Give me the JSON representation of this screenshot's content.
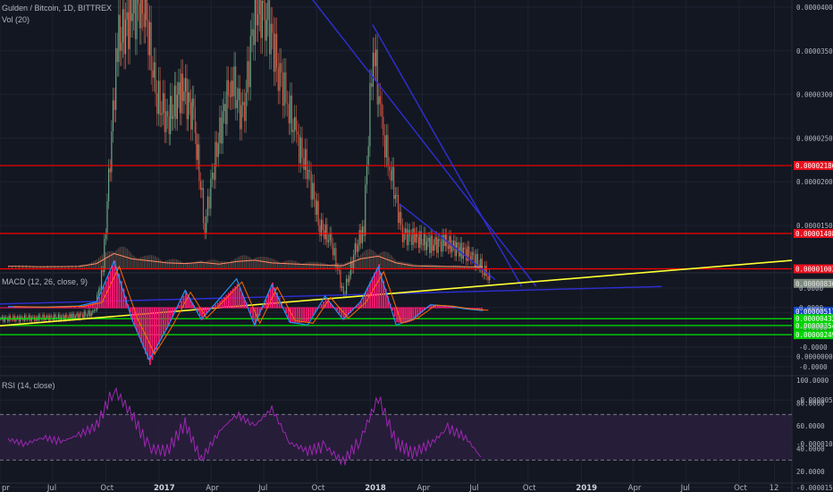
{
  "header": {
    "symbol_label": "Gulden / Bitcoin, 1D, BITTREX",
    "volume_label": "Vol (20)",
    "macd_label": "MACD (12, 26, close, 9)",
    "rsi_label": "RSI (14, close)"
  },
  "colors": {
    "background": "#131722",
    "grid": "#1f2230",
    "candle_up": "#6ba583",
    "candle_down": "#d75442",
    "resistance": "#ff0000",
    "support": "#00e600",
    "trendline": "#2f2fd6",
    "uptrend": "#ffff33",
    "macd_line": "#2196f3",
    "signal_line": "#ff6d00",
    "histogram": "#ff1a75",
    "rsi_line": "#9c27b0",
    "rsi_band": "#2a1f3d"
  },
  "price_axis": {
    "ticks": [
      "0.00004000",
      "0.00003500",
      "0.00003000",
      "0.00002500",
      "0.00002000",
      "0.00001500",
      "0.00001000",
      "0.00000500",
      "0.00000000",
      "-0.00000500",
      "-0.00001000",
      "-0.00001500"
    ],
    "tags": [
      {
        "text": "0.00002186",
        "color": "#e8101e"
      },
      {
        "text": "0.00001408",
        "color": "#e8101e"
      },
      {
        "text": "0.00001003",
        "color": "#e8101e"
      },
      {
        "text": "0.00000836",
        "color": "#7d8a7f"
      },
      {
        "text": "0.00000517",
        "color": "#1848c7"
      },
      {
        "text": "0.00000432",
        "color": "#00d400"
      },
      {
        "text": "0.00000354",
        "color": "#00d400"
      },
      {
        "text": "0.00000249",
        "color": "#00d400"
      }
    ]
  },
  "macd_axis": {
    "ticks": [
      "0.0000",
      "0.0000",
      "-0.0000",
      "-0.0000",
      "-0.0000"
    ]
  },
  "rsi_axis": {
    "ticks": [
      "100.0000",
      "80.0000",
      "60.0000",
      "40.0000",
      "20.0000"
    ]
  },
  "time_axis": {
    "labels": [
      {
        "text": "pr",
        "bold": false
      },
      {
        "text": "Jul",
        "bold": false
      },
      {
        "text": "Oct",
        "bold": false
      },
      {
        "text": "2017",
        "bold": true
      },
      {
        "text": "Apr",
        "bold": false
      },
      {
        "text": "Jul",
        "bold": false
      },
      {
        "text": "Oct",
        "bold": false
      },
      {
        "text": "2018",
        "bold": true
      },
      {
        "text": "Apr",
        "bold": false
      },
      {
        "text": "Jul",
        "bold": false
      },
      {
        "text": "Oct",
        "bold": false
      },
      {
        "text": "2019",
        "bold": true
      },
      {
        "text": "Apr",
        "bold": false
      },
      {
        "text": "Jul",
        "bold": false
      },
      {
        "text": "Oct",
        "bold": false
      },
      {
        "text": "12",
        "bold": false
      }
    ]
  },
  "chart_data": {
    "type": "line",
    "title": "Gulden / Bitcoin, 1D, BITTREX",
    "x_range": [
      "2016-04",
      "2019-12"
    ],
    "price_ylim": [
      -1.7e-05,
      4e-05
    ],
    "horizontal_levels": {
      "resistance": [
        2.186e-05,
        1.408e-05,
        1.003e-05
      ],
      "support": [
        4.32e-06,
        3.54e-06,
        2.49e-06
      ]
    },
    "price_close": [
      [
        "2016-04-01",
        4.3e-06
      ],
      [
        "2016-06-01",
        4.4e-06
      ],
      [
        "2016-08-01",
        4.5e-06
      ],
      [
        "2016-09-10",
        5e-06
      ],
      [
        "2016-09-25",
        1e-05
      ],
      [
        "2016-10-05",
        2e-05
      ],
      [
        "2016-10-20",
        3.6e-05
      ],
      [
        "2016-11-15",
        3.9e-05
      ],
      [
        "2016-12-05",
        4.1e-05
      ],
      [
        "2016-12-25",
        3e-05
      ],
      [
        "2017-01-15",
        2.7e-05
      ],
      [
        "2017-02-10",
        3.1e-05
      ],
      [
        "2017-03-01",
        2.7e-05
      ],
      [
        "2017-03-20",
        1.5e-05
      ],
      [
        "2017-04-10",
        2.4e-05
      ],
      [
        "2017-05-05",
        3.2e-05
      ],
      [
        "2017-05-25",
        2.7e-05
      ],
      [
        "2017-06-15",
        4e-05
      ],
      [
        "2017-07-05",
        3.9e-05
      ],
      [
        "2017-07-25",
        3.3e-05
      ],
      [
        "2017-08-10",
        2.9e-05
      ],
      [
        "2017-08-25",
        2.5e-05
      ],
      [
        "2017-09-15",
        2.1e-05
      ],
      [
        "2017-10-05",
        1.5e-05
      ],
      [
        "2017-10-25",
        1.3e-05
      ],
      [
        "2017-11-15",
        7e-06
      ],
      [
        "2017-12-05",
        1.2e-05
      ],
      [
        "2017-12-20",
        1.5e-05
      ],
      [
        "2018-01-05",
        3.6e-05
      ],
      [
        "2018-01-20",
        2.6e-05
      ],
      [
        "2018-02-05",
        2.1e-05
      ],
      [
        "2018-02-25",
        1.4e-05
      ],
      [
        "2018-03-20",
        1.35e-05
      ],
      [
        "2018-04-15",
        1.28e-05
      ],
      [
        "2018-05-10",
        1.3e-05
      ],
      [
        "2018-06-05",
        1.22e-05
      ],
      [
        "2018-06-25",
        1.15e-05
      ],
      [
        "2018-07-15",
        1e-05
      ],
      [
        "2018-07-28",
        8.5e-06
      ]
    ],
    "trendlines": [
      {
        "name": "upper",
        "color": "blue",
        "from": [
          "2017-09-10",
          4.2e-05
        ],
        "to": [
          "2018-10-15",
          8e-06
        ]
      },
      {
        "name": "mid",
        "color": "blue",
        "from": [
          "2018-01-05",
          3.8e-05
        ],
        "to": [
          "2018-09-20",
          8e-06
        ]
      },
      {
        "name": "wedge",
        "color": "blue",
        "from": [
          "2018-02-20",
          1.75e-05
        ],
        "to": [
          "2018-08-05",
          8.8e-06
        ]
      },
      {
        "name": "support",
        "color": "blue",
        "from": [
          "2016-04-01",
          6e-06
        ],
        "to": [
          "2019-05-20",
          8e-06
        ]
      },
      {
        "name": "uptrend",
        "color": "yellow",
        "from": [
          "2016-04-01",
          3.5e-06
        ],
        "to": [
          "2019-12-31",
          1.1e-05
        ]
      }
    ],
    "volume_ylim": [
      0,
      1
    ],
    "volume": [
      [
        "2016-04",
        0.08
      ],
      [
        "2016-06",
        0.06
      ],
      [
        "2016-08",
        0.07
      ],
      [
        "2016-09",
        0.18
      ],
      [
        "2016-10",
        0.55
      ],
      [
        "2016-11",
        0.35
      ],
      [
        "2016-12",
        0.28
      ],
      [
        "2017-01",
        0.2
      ],
      [
        "2017-02",
        0.18
      ],
      [
        "2017-03",
        0.22
      ],
      [
        "2017-04",
        0.16
      ],
      [
        "2017-05",
        0.25
      ],
      [
        "2017-06",
        0.3
      ],
      [
        "2017-07",
        0.2
      ],
      [
        "2017-08",
        0.17
      ],
      [
        "2017-09",
        0.14
      ],
      [
        "2017-10",
        0.12
      ],
      [
        "2017-11",
        0.1
      ],
      [
        "2017-12",
        0.35
      ],
      [
        "2018-01",
        0.45
      ],
      [
        "2018-02",
        0.2
      ],
      [
        "2018-03",
        0.1
      ],
      [
        "2018-04",
        0.08
      ],
      [
        "2018-05",
        0.07
      ],
      [
        "2018-06",
        0.06
      ],
      [
        "2018-07",
        0.06
      ]
    ],
    "macd_ylim": [
      -1,
      1
    ],
    "macd_histogram": [
      [
        "2016-04",
        0.02
      ],
      [
        "2016-06",
        0.01
      ],
      [
        "2016-08",
        0.03
      ],
      [
        "2016-09",
        0.1
      ],
      [
        "2016-10",
        0.8
      ],
      [
        "2016-11",
        -0.2
      ],
      [
        "2016-12",
        -0.9
      ],
      [
        "2017-01",
        -0.35
      ],
      [
        "2017-02",
        0.3
      ],
      [
        "2017-03",
        -0.2
      ],
      [
        "2017-04",
        0.15
      ],
      [
        "2017-05",
        0.5
      ],
      [
        "2017-06",
        -0.3
      ],
      [
        "2017-07",
        0.4
      ],
      [
        "2017-08",
        -0.25
      ],
      [
        "2017-09",
        -0.3
      ],
      [
        "2017-10",
        0.2
      ],
      [
        "2017-11",
        -0.2
      ],
      [
        "2017-12",
        0.1
      ],
      [
        "2018-01",
        0.7
      ],
      [
        "2018-02",
        -0.3
      ],
      [
        "2018-03",
        -0.2
      ],
      [
        "2018-04",
        0.05
      ],
      [
        "2018-05",
        0.03
      ],
      [
        "2018-06",
        -0.02
      ],
      [
        "2018-07",
        -0.05
      ]
    ],
    "rsi_ylim": [
      15,
      100
    ],
    "rsi_bands": [
      30,
      70
    ],
    "rsi": [
      [
        "2016-04",
        48
      ],
      [
        "2016-05",
        44
      ],
      [
        "2016-06",
        50
      ],
      [
        "2016-07",
        46
      ],
      [
        "2016-08",
        52
      ],
      [
        "2016-09",
        60
      ],
      [
        "2016-10",
        92
      ],
      [
        "2016-11",
        70
      ],
      [
        "2016-12",
        40
      ],
      [
        "2017-01",
        38
      ],
      [
        "2017-02",
        62
      ],
      [
        "2017-03",
        30
      ],
      [
        "2017-04",
        55
      ],
      [
        "2017-05",
        70
      ],
      [
        "2017-06",
        60
      ],
      [
        "2017-07",
        75
      ],
      [
        "2017-08",
        45
      ],
      [
        "2017-09",
        38
      ],
      [
        "2017-10",
        42
      ],
      [
        "2017-11",
        28
      ],
      [
        "2017-12",
        48
      ],
      [
        "2018-01",
        85
      ],
      [
        "2018-02",
        45
      ],
      [
        "2018-03",
        36
      ],
      [
        "2018-04",
        44
      ],
      [
        "2018-05",
        58
      ],
      [
        "2018-06",
        50
      ],
      [
        "2018-07",
        30
      ]
    ]
  }
}
